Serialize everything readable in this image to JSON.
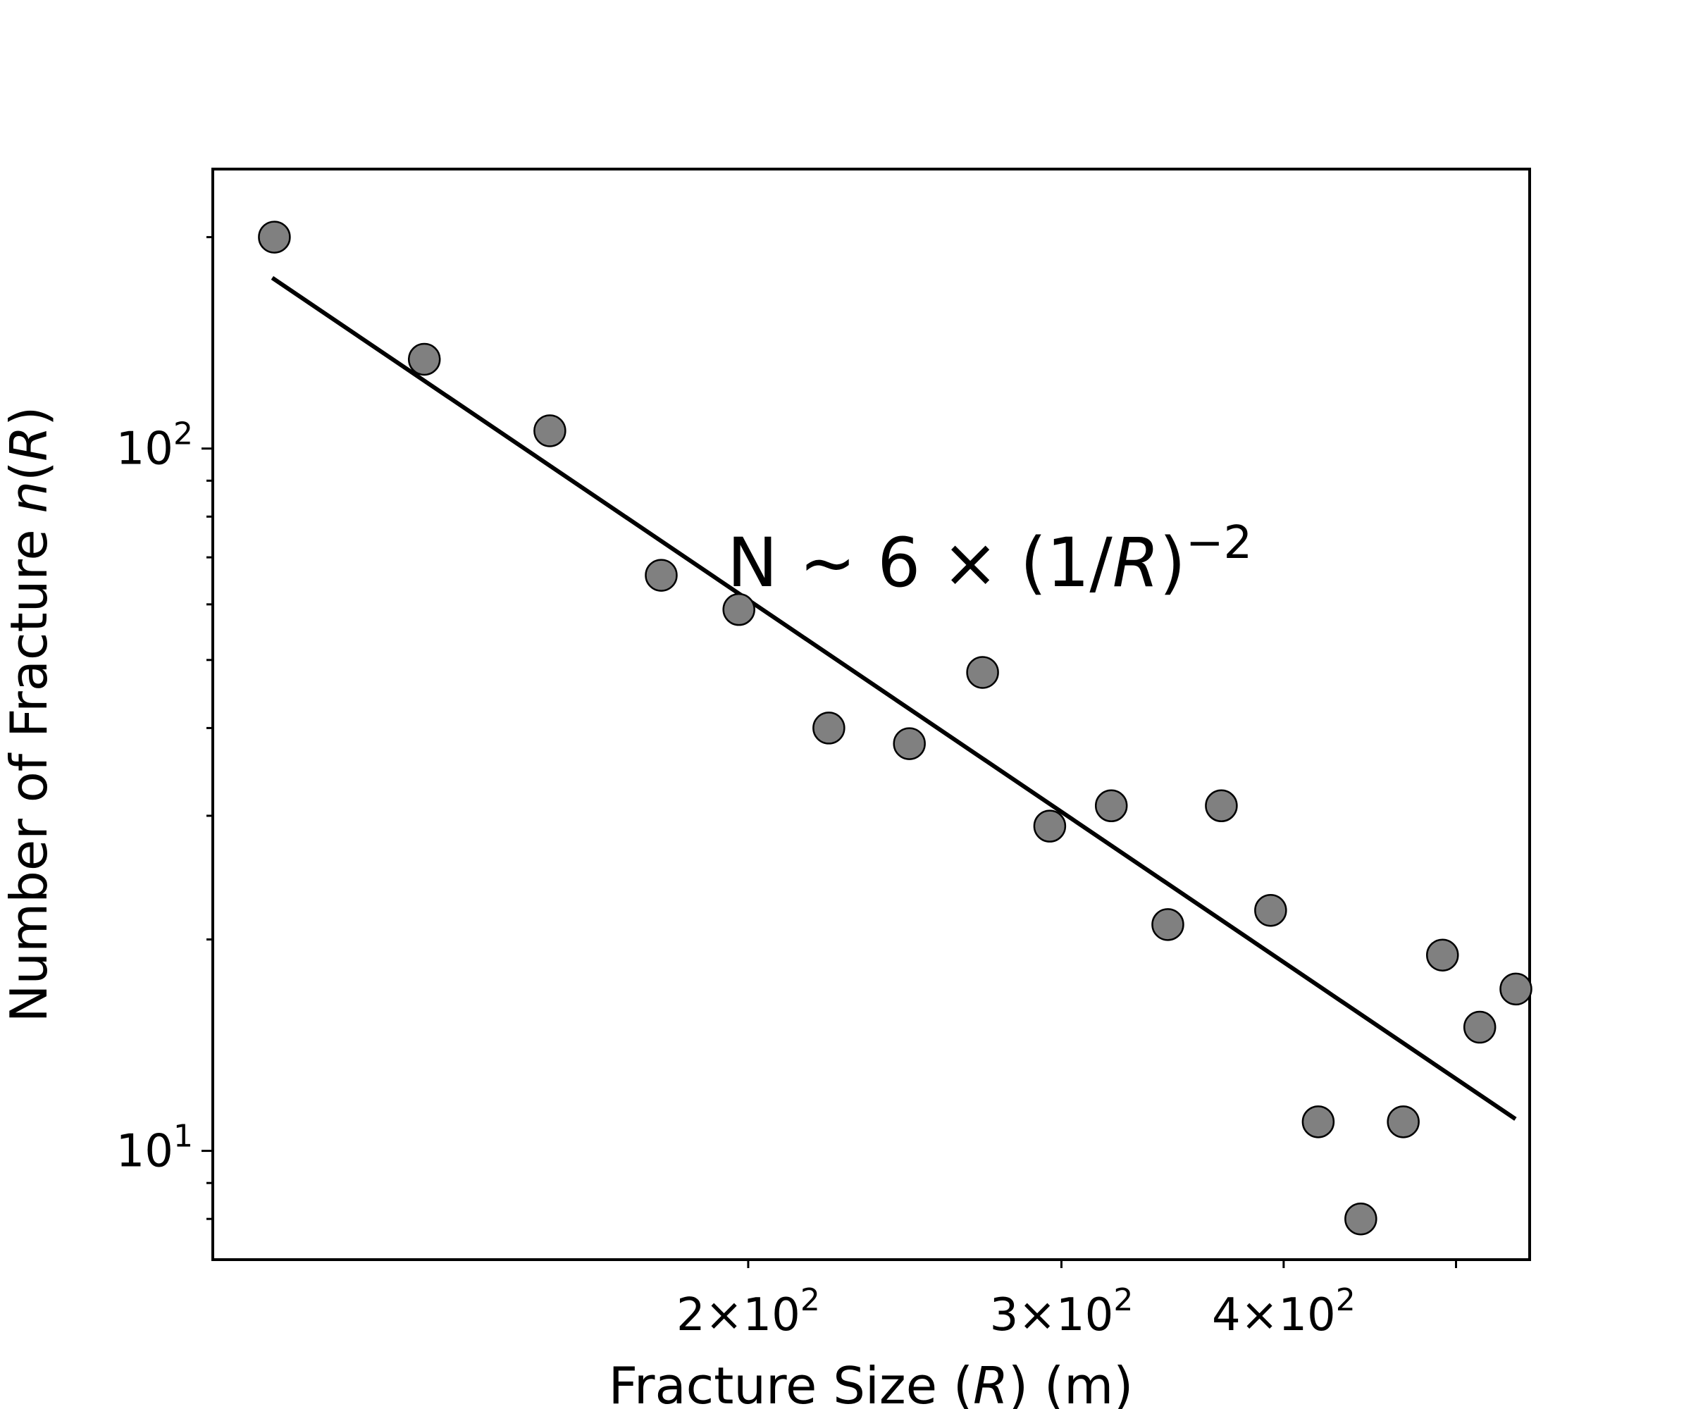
{
  "chart_data": {
    "type": "scatter",
    "x_scale": "log",
    "y_scale": "log",
    "xlabel": {
      "pre": "Fracture Size (",
      "italic": "R",
      "post": ") (m)"
    },
    "ylabel": {
      "pre": "Number of Fracture ",
      "italic1": "n",
      "mid": "(",
      "italic2": "R",
      "post": ")"
    },
    "xlim": [
      100,
      550
    ],
    "ylim": [
      7.0,
      250
    ],
    "x_ticks": [
      {
        "value": 200,
        "mantissa": "2",
        "exp": "2"
      },
      {
        "value": 300,
        "mantissa": "3",
        "exp": "2"
      },
      {
        "value": 400,
        "mantissa": "4",
        "exp": "2"
      },
      {
        "value": 500,
        "mantissa": "",
        "exp": ""
      }
    ],
    "y_ticks": [
      {
        "value": 10,
        "base": "10",
        "exp": "1"
      },
      {
        "value": 100,
        "base": "10",
        "exp": "2"
      }
    ],
    "y_minor_ticks": [
      8,
      9,
      20,
      30,
      40,
      50,
      60,
      70,
      80,
      90,
      200
    ],
    "points": [
      {
        "x": 108.3,
        "y": 200
      },
      {
        "x": 131.5,
        "y": 134
      },
      {
        "x": 154.7,
        "y": 106
      },
      {
        "x": 178.7,
        "y": 66
      },
      {
        "x": 197.6,
        "y": 59
      },
      {
        "x": 222.0,
        "y": 40
      },
      {
        "x": 246.4,
        "y": 38
      },
      {
        "x": 270.9,
        "y": 48
      },
      {
        "x": 295.5,
        "y": 29
      },
      {
        "x": 320.0,
        "y": 31
      },
      {
        "x": 344.3,
        "y": 21
      },
      {
        "x": 369.0,
        "y": 31
      },
      {
        "x": 393.3,
        "y": 22
      },
      {
        "x": 418.3,
        "y": 11
      },
      {
        "x": 442.0,
        "y": 8
      },
      {
        "x": 467.0,
        "y": 11
      },
      {
        "x": 491.3,
        "y": 19
      },
      {
        "x": 515.6,
        "y": 15
      },
      {
        "x": 540.3,
        "y": 17
      }
    ],
    "fit_line": {
      "x": [
        108.0,
        540.0
      ],
      "y": [
        175.0,
        11.1
      ]
    },
    "marker_color": "#808080",
    "line_color": "#000000",
    "grid": false,
    "annotation": {
      "pre": "N ~ 6 × (1/",
      "italic": "R",
      "post": ")",
      "sup": "−2"
    }
  }
}
